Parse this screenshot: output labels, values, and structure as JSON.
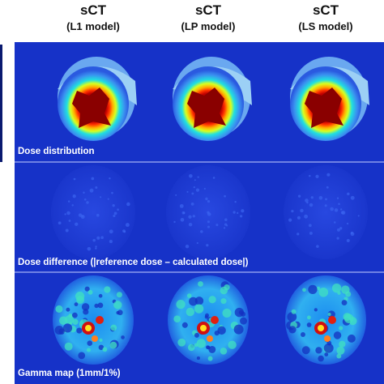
{
  "columns": [
    {
      "title": "sCT",
      "subtitle": "(L1 model)"
    },
    {
      "title": "sCT",
      "subtitle": "(LP model)"
    },
    {
      "title": "sCT",
      "subtitle": "(LS model)"
    }
  ],
  "rows": [
    {
      "label": "Dose distribution"
    },
    {
      "label": "Dose difference (|reference dose – calculated dose|)"
    },
    {
      "label": "Gamma map (1mm/1%)"
    }
  ]
}
